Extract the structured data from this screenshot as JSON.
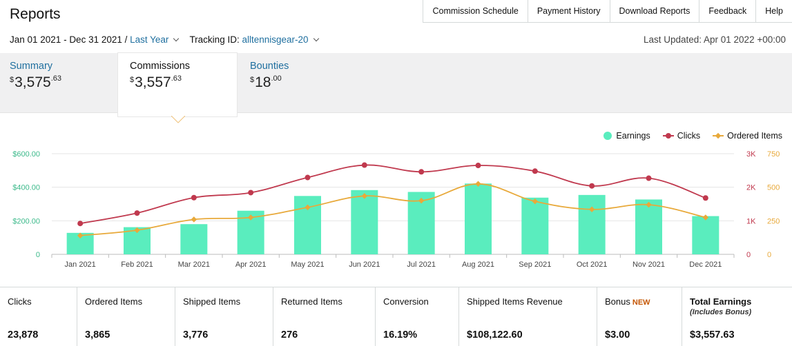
{
  "header": {
    "title": "Reports",
    "nav": [
      "Commission Schedule",
      "Payment History",
      "Download Reports",
      "Feedback",
      "Help"
    ]
  },
  "filters": {
    "date_range": "Jan 01 2021 - Dec 31 2021 / ",
    "date_preset": "Last Year",
    "tracking_label": "Tracking ID: ",
    "tracking_id": "alltennisgear-20",
    "last_updated": "Last Updated: Apr 01 2022 +00:00"
  },
  "tabs": {
    "summary": {
      "label": "Summary",
      "currency": "$",
      "whole": "3,575",
      "cents": ".63"
    },
    "commissions": {
      "label": "Commissions",
      "currency": "$",
      "whole": "3,557",
      "cents": ".63"
    },
    "bounties": {
      "label": "Bounties",
      "currency": "$",
      "whole": "18",
      "cents": ".00"
    }
  },
  "legend": {
    "earnings": "Earnings",
    "clicks": "Clicks",
    "ordered": "Ordered Items"
  },
  "colors": {
    "earnings": "#5aedbe",
    "clicks": "#c0394e",
    "ordered": "#e8a93a",
    "link": "#1f6f9f",
    "left_axis": "#3bb98a"
  },
  "chart_data": {
    "type": "bar",
    "categories": [
      "Jan 2021",
      "Feb 2021",
      "Mar 2021",
      "Apr 2021",
      "May 2021",
      "Jun 2021",
      "Jul 2021",
      "Aug 2021",
      "Sep 2021",
      "Oct 2021",
      "Nov 2021",
      "Dec 2021"
    ],
    "series": [
      {
        "name": "Earnings",
        "type": "bar",
        "axis": "left",
        "values": [
          128,
          162,
          180,
          260,
          348,
          383,
          372,
          422,
          338,
          354,
          327,
          228
        ]
      },
      {
        "name": "Clicks",
        "type": "line",
        "axis": "right_clicks",
        "values": [
          920,
          1230,
          1690,
          1840,
          2290,
          2660,
          2460,
          2650,
          2480,
          2040,
          2270,
          1680
        ]
      },
      {
        "name": "Ordered Items",
        "type": "line",
        "axis": "right_items",
        "values": [
          140,
          180,
          260,
          275,
          350,
          435,
          400,
          525,
          395,
          335,
          370,
          275
        ]
      }
    ],
    "left_axis": {
      "ticks": [
        "0",
        "$200.00",
        "$400.00",
        "$600.00"
      ],
      "range": [
        0,
        600
      ]
    },
    "right_clicks_axis": {
      "ticks": [
        "0",
        "1K",
        "2K",
        "3K"
      ],
      "range": [
        0,
        3000
      ]
    },
    "right_items_axis": {
      "ticks": [
        "0",
        "250",
        "500",
        "750"
      ],
      "range": [
        0,
        750
      ]
    }
  },
  "stats": {
    "clicks": {
      "label": "Clicks",
      "value": "23,878"
    },
    "ordered": {
      "label": "Ordered Items",
      "value": "3,865"
    },
    "shipped": {
      "label": "Shipped Items",
      "value": "3,776"
    },
    "returned": {
      "label": "Returned Items",
      "value": "276"
    },
    "conversion": {
      "label": "Conversion",
      "value": "16.19%"
    },
    "revenue": {
      "label": "Shipped Items Revenue",
      "value": "$108,122.60"
    },
    "bonus": {
      "label": "Bonus",
      "badge": "NEW",
      "value": "$3.00"
    },
    "total": {
      "label": "Total Earnings",
      "sub": "(Includes Bonus)",
      "value": "$3,557.63"
    }
  }
}
